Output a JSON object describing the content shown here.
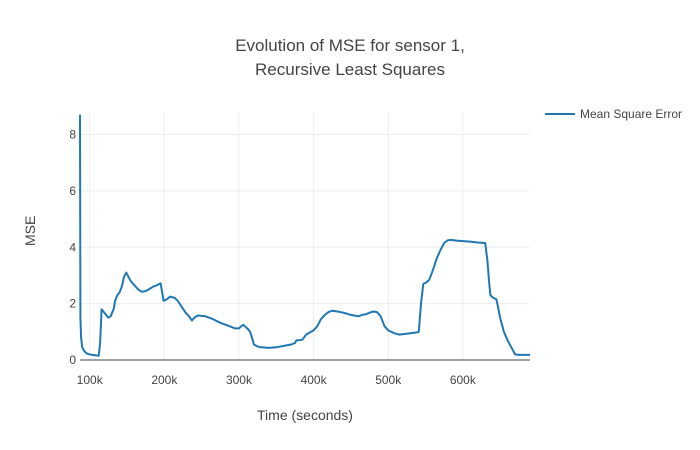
{
  "chart_data": {
    "type": "line",
    "title_lines": [
      "Evolution of MSE for sensor 1,",
      "Recursive Least Squares"
    ],
    "xlabel": "Time (seconds)",
    "ylabel": "MSE",
    "xlim": [
      87000,
      690000
    ],
    "ylim": [
      0,
      8.8
    ],
    "x_ticks": [
      100000,
      200000,
      300000,
      400000,
      500000,
      600000
    ],
    "x_tick_labels": [
      "100k",
      "200k",
      "300k",
      "400k",
      "500k",
      "600k"
    ],
    "y_ticks": [
      0,
      2,
      4,
      6,
      8
    ],
    "y_tick_labels": [
      "0",
      "2",
      "4",
      "6",
      "8"
    ],
    "grid": true,
    "legend_position": "top-right",
    "series": [
      {
        "name": "Mean Square Error",
        "color": "#1f77b4",
        "x": [
          87000,
          87500,
          88500,
          90000,
          93000,
          97000,
          103000,
          112000,
          114000,
          116000,
          119000,
          122000,
          125000,
          128000,
          132000,
          134000,
          137000,
          140000,
          143000,
          146000,
          149000,
          151000,
          155000,
          160000,
          165000,
          170000,
          175000,
          180000,
          185000,
          190000,
          195000,
          199000,
          203000,
          208000,
          214000,
          218000,
          223000,
          228000,
          233000,
          237000,
          241000,
          245000,
          255000,
          265000,
          275000,
          285000,
          295000,
          300000,
          303000,
          306000,
          312000,
          315000,
          318000,
          320000,
          325000,
          330000,
          340000,
          350000,
          360000,
          370000,
          375000,
          377000,
          380000,
          385000,
          390000,
          395000,
          400000,
          405000,
          410000,
          415000,
          420000,
          425000,
          432000,
          440000,
          450000,
          460000,
          465000,
          470000,
          475000,
          480000,
          485000,
          490000,
          495000,
          500000,
          508000,
          515000,
          520000,
          530000,
          538000,
          541000,
          544000,
          547000,
          551000,
          555000,
          560000,
          565000,
          570000,
          575000,
          580000,
          585000,
          590000,
          600000,
          610000,
          620000,
          630000,
          633000,
          635000,
          637000,
          640000,
          645000,
          647000,
          650000,
          655000,
          660000,
          665000,
          670000,
          675000,
          690000
        ],
        "y": [
          8.7,
          1.5,
          0.8,
          0.45,
          0.3,
          0.22,
          0.18,
          0.15,
          0.6,
          1.8,
          1.7,
          1.6,
          1.5,
          1.55,
          1.8,
          2.1,
          2.3,
          2.4,
          2.6,
          2.95,
          3.1,
          3.0,
          2.8,
          2.65,
          2.5,
          2.42,
          2.45,
          2.52,
          2.6,
          2.65,
          2.72,
          2.1,
          2.15,
          2.25,
          2.2,
          2.1,
          1.9,
          1.7,
          1.55,
          1.4,
          1.52,
          1.58,
          1.55,
          1.45,
          1.32,
          1.22,
          1.12,
          1.12,
          1.2,
          1.25,
          1.1,
          1.0,
          0.75,
          0.55,
          0.48,
          0.45,
          0.43,
          0.45,
          0.5,
          0.55,
          0.6,
          0.7,
          0.7,
          0.72,
          0.9,
          0.98,
          1.05,
          1.2,
          1.45,
          1.6,
          1.7,
          1.75,
          1.72,
          1.68,
          1.6,
          1.55,
          1.6,
          1.62,
          1.68,
          1.72,
          1.7,
          1.55,
          1.2,
          1.05,
          0.95,
          0.9,
          0.92,
          0.95,
          0.98,
          1.0,
          2.0,
          2.7,
          2.75,
          2.85,
          3.2,
          3.6,
          3.9,
          4.15,
          4.25,
          4.26,
          4.24,
          4.22,
          4.2,
          4.17,
          4.15,
          3.5,
          2.8,
          2.3,
          2.22,
          2.15,
          1.9,
          1.5,
          1.0,
          0.7,
          0.45,
          0.2,
          0.18,
          0.18
        ]
      }
    ]
  }
}
